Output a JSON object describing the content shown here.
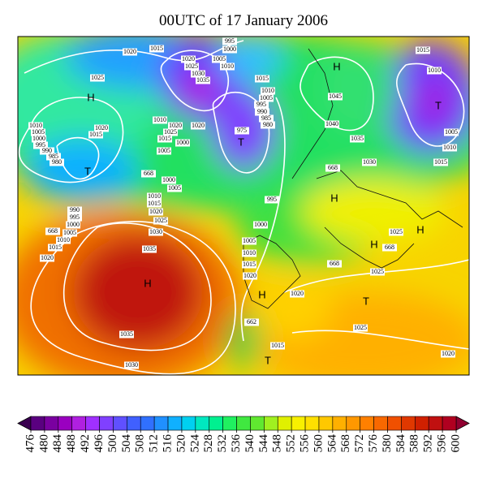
{
  "title": "00UTC of 17 January 2006",
  "map": {
    "isobar_labels": [
      1020,
      1015,
      995,
      1000,
      1020,
      1005,
      1025,
      1010,
      1030,
      1035,
      1015,
      1010,
      1005,
      995,
      990,
      985,
      980,
      975,
      1025,
      1045,
      1040,
      1035,
      1030,
      668,
      1015,
      1010,
      1005,
      1010,
      1015,
      1010,
      1005,
      1000,
      995,
      990,
      985,
      980,
      1020,
      1015,
      1010,
      1020,
      1025,
      1015,
      1000,
      1005,
      1020,
      668,
      1000,
      1005,
      1010,
      1015,
      1020,
      1025,
      1030,
      990,
      995,
      1000,
      1005,
      1010,
      1015,
      668,
      1020,
      995,
      1000,
      1005,
      1010,
      1015,
      1020,
      1035,
      1035,
      1030,
      668,
      1025,
      1025,
      668,
      1020,
      1025,
      1015,
      662,
      1020
    ],
    "pressure_centers": [
      "T",
      "H",
      "H",
      "T",
      "T",
      "H",
      "H",
      "H",
      "H",
      "H",
      "T",
      "T"
    ]
  },
  "colorbar": {
    "ticks": [
      476,
      480,
      484,
      488,
      492,
      496,
      500,
      504,
      508,
      512,
      516,
      520,
      524,
      528,
      532,
      536,
      540,
      544,
      548,
      552,
      556,
      560,
      564,
      568,
      572,
      576,
      580,
      584,
      588,
      592,
      596,
      600
    ],
    "colors": [
      "#3a0050",
      "#5a0080",
      "#7a00a0",
      "#9a00c0",
      "#b020e0",
      "#a030ff",
      "#8040ff",
      "#6050ff",
      "#4060ff",
      "#3070ff",
      "#2090ff",
      "#10b0ff",
      "#00d0f0",
      "#00e8c0",
      "#00f090",
      "#20f060",
      "#40e840",
      "#60e830",
      "#a0f020",
      "#e0f000",
      "#f8f000",
      "#ffe000",
      "#ffc800",
      "#ffb000",
      "#ff9800",
      "#ff8000",
      "#f86800",
      "#f05000",
      "#e03800",
      "#d02000",
      "#c01010",
      "#b00020",
      "#900030"
    ]
  }
}
